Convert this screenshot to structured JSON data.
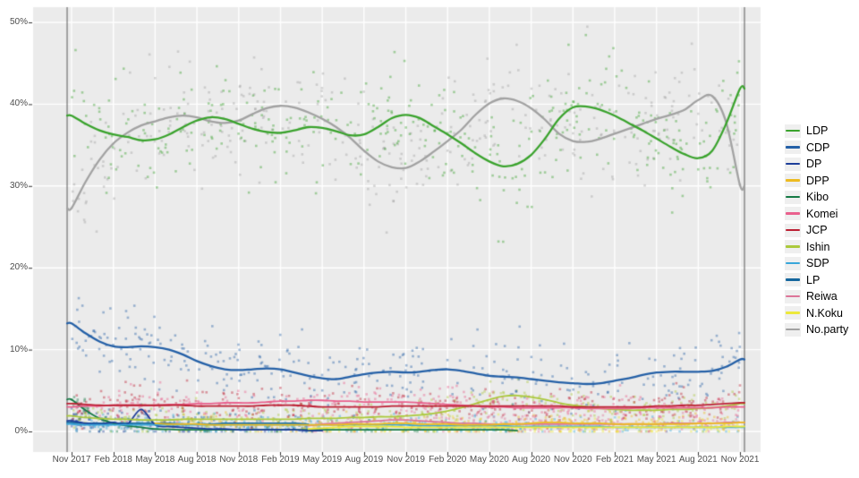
{
  "meta": {
    "description": "Smoothed opinion-poll chart of Japanese party support, Nov 2017 - Nov 2021"
  },
  "colors": {
    "background": "#ffffff",
    "panel": "#ebebeb",
    "grid": "#ffffff",
    "axis_text": "#4d4d4d",
    "tick_mark": "#333333",
    "event_line": "#646464",
    "legend_key_bg": "#efefef"
  },
  "axes": {
    "y_ticks": [
      {
        "label": "50%",
        "value": 50
      },
      {
        "label": "40%",
        "value": 40
      },
      {
        "label": "30%",
        "value": 30
      },
      {
        "label": "20%",
        "value": 20
      },
      {
        "label": "10%",
        "value": 10
      },
      {
        "label": "0%",
        "value": 0
      }
    ],
    "x_ticks": [
      "Nov 2017",
      "Feb 2018",
      "May 2018",
      "Aug 2018",
      "Nov 2018",
      "Feb 2019",
      "May 2019",
      "Aug 2019",
      "Nov 2019",
      "Feb 2020",
      "May 2020",
      "Aug 2020",
      "Nov 2020",
      "Feb 2021",
      "May 2021",
      "Aug 2021",
      "Nov 2021"
    ]
  },
  "chart_data": {
    "type": "scatter",
    "subtype": "poll scatter with loess smoothed lines per party",
    "title": "",
    "xlabel": "",
    "ylabel": "",
    "x_unit": "months since Nov 2017 (0..48)",
    "ylim": [
      -2.5,
      52
    ],
    "grid": "major gridlines only, white on gray panel",
    "legend_position": "right",
    "event_vlines_months": [
      -0.32,
      48.32
    ],
    "series": [
      {
        "name": "LDP",
        "color": "#3aa32d",
        "start_month": 0,
        "point_count": 380,
        "point_sd": 3.4,
        "monthly_values": [
          38.6,
          37.6,
          36.8,
          36.3,
          36.0,
          35.6,
          35.7,
          36.3,
          37.2,
          38.0,
          38.4,
          38.2,
          37.6,
          37.0,
          36.6,
          36.5,
          36.8,
          37.2,
          37.1,
          36.7,
          36.2,
          36.3,
          37.2,
          38.3,
          38.7,
          38.3,
          37.3,
          36.3,
          35.2,
          34.0,
          33.0,
          32.4,
          32.7,
          33.8,
          35.8,
          38.2,
          39.6,
          39.7,
          39.3,
          38.6,
          37.7,
          36.8,
          35.8,
          34.8,
          33.9,
          33.4,
          34.3,
          37.6,
          41.9
        ]
      },
      {
        "name": "CDP",
        "color": "#2460a7",
        "start_month": 0,
        "point_count": 340,
        "point_sd": 2.2,
        "monthly_values": [
          13.2,
          12.0,
          11.0,
          10.4,
          10.3,
          10.4,
          10.3,
          10.0,
          9.4,
          8.6,
          8.0,
          7.6,
          7.5,
          7.6,
          7.7,
          7.6,
          7.2,
          6.8,
          6.5,
          6.4,
          6.7,
          7.0,
          7.2,
          7.3,
          7.2,
          7.3,
          7.5,
          7.6,
          7.4,
          7.1,
          6.8,
          6.7,
          6.6,
          6.4,
          6.2,
          6.0,
          5.9,
          5.8,
          5.9,
          6.2,
          6.5,
          6.9,
          7.2,
          7.3,
          7.3,
          7.3,
          7.4,
          7.9,
          8.8
        ]
      },
      {
        "name": "DP",
        "color": "#1d3e99",
        "start_month": 0,
        "point_count": 80,
        "point_sd": 0.7,
        "point_bias_early": true,
        "monthly_values": [
          1.3,
          1.0,
          0.9,
          1.1,
          0.9,
          2.7,
          0.8,
          0.6,
          0.5,
          0.4,
          0.3,
          0.3,
          0.2,
          0.2,
          0.2,
          0.2,
          0.2,
          0.1,
          0.1
        ]
      },
      {
        "name": "DPP",
        "color": "#edbb21",
        "start_month": 6,
        "point_count": 250,
        "point_sd": 0.7,
        "monthly_values": [
          1.0,
          0.9,
          0.9,
          0.9,
          0.8,
          0.8,
          0.8,
          0.8,
          0.8,
          0.8,
          0.8,
          0.8,
          0.8,
          0.8,
          0.9,
          0.9,
          0.9,
          1.0,
          1.0,
          0.9,
          0.9,
          0.9,
          0.8,
          0.8,
          0.8,
          0.9,
          0.9,
          1.0,
          1.1,
          1.1,
          1.0,
          1.0,
          1.0,
          0.9,
          0.9,
          0.9,
          0.9,
          0.9,
          0.9,
          1.0,
          1.0,
          1.0,
          1.1
        ]
      },
      {
        "name": "Kibo",
        "color": "#157a45",
        "start_month": 0,
        "point_count": 80,
        "point_sd": 0.6,
        "point_bias_early": true,
        "monthly_values": [
          3.9,
          2.6,
          1.6,
          1.0,
          0.7,
          0.5,
          0.3,
          0.25,
          0.2,
          0.2,
          0.2,
          0.2,
          0.2,
          0.2,
          0.2,
          0.2,
          0.2,
          0.2,
          0.2,
          0.2,
          0.2,
          0.2,
          0.2,
          0.2,
          0.2,
          0.2,
          0.2,
          0.2,
          0.2,
          0.2,
          0.2,
          0.2,
          0.1
        ]
      },
      {
        "name": "Komei",
        "color": "#e9608d",
        "start_month": 0,
        "point_count": 300,
        "point_sd": 1.0,
        "monthly_values": [
          3.0,
          3.1,
          3.1,
          3.2,
          3.2,
          3.2,
          3.2,
          3.3,
          3.3,
          3.4,
          3.4,
          3.5,
          3.5,
          3.5,
          3.6,
          3.7,
          3.7,
          3.8,
          3.8,
          3.7,
          3.7,
          3.6,
          3.6,
          3.6,
          3.6,
          3.5,
          3.4,
          3.3,
          3.2,
          3.1,
          3.0,
          3.0,
          2.9,
          2.9,
          2.9,
          2.9,
          2.9,
          2.8,
          2.8,
          2.8,
          2.8,
          2.9,
          2.9,
          2.9,
          2.9,
          2.9,
          2.9,
          3.0,
          3.0
        ]
      },
      {
        "name": "JCP",
        "color": "#bc1f33",
        "start_month": 0,
        "point_count": 300,
        "point_sd": 1.1,
        "monthly_values": [
          3.4,
          3.3,
          3.2,
          3.2,
          3.2,
          3.2,
          3.2,
          3.2,
          3.2,
          3.1,
          3.1,
          3.1,
          3.1,
          3.1,
          3.2,
          3.2,
          3.2,
          3.1,
          3.0,
          3.0,
          3.0,
          3.0,
          3.0,
          3.1,
          3.1,
          3.1,
          3.1,
          3.1,
          3.1,
          3.1,
          3.1,
          3.1,
          3.1,
          3.1,
          3.1,
          3.1,
          3.0,
          3.0,
          3.0,
          3.0,
          3.0,
          3.0,
          3.1,
          3.1,
          3.2,
          3.2,
          3.3,
          3.4,
          3.5
        ]
      },
      {
        "name": "Ishin",
        "color": "#abc93c",
        "start_month": 0,
        "point_count": 280,
        "point_sd": 1.0,
        "monthly_values": [
          1.9,
          1.7,
          1.6,
          1.5,
          1.5,
          1.4,
          1.4,
          1.4,
          1.5,
          1.5,
          1.5,
          1.5,
          1.5,
          1.5,
          1.5,
          1.5,
          1.5,
          1.6,
          1.6,
          1.6,
          1.7,
          1.7,
          1.8,
          1.8,
          1.9,
          2.0,
          2.2,
          2.5,
          2.9,
          3.4,
          3.9,
          4.3,
          4.4,
          4.2,
          3.9,
          3.5,
          3.2,
          3.0,
          2.8,
          2.7,
          2.6,
          2.6,
          2.6,
          2.7,
          2.7,
          2.8,
          2.9,
          3.1,
          3.4
        ]
      },
      {
        "name": "SDP",
        "color": "#38a6da",
        "start_month": 0,
        "point_count": 260,
        "point_sd": 0.6,
        "monthly_values": [
          0.9,
          0.8,
          0.8,
          0.8,
          0.8,
          0.8,
          0.8,
          0.8,
          0.8,
          0.8,
          0.8,
          0.8,
          0.8,
          0.8,
          0.8,
          0.8,
          0.8,
          0.8,
          0.8,
          0.8,
          0.8,
          0.8,
          0.8,
          0.8,
          0.8,
          0.7,
          0.7,
          0.7,
          0.7,
          0.7,
          0.7,
          0.7,
          0.6,
          0.6,
          0.6,
          0.6,
          0.6,
          0.6,
          0.6,
          0.5,
          0.5,
          0.5,
          0.5,
          0.5,
          0.5,
          0.5,
          0.5,
          0.5,
          0.5
        ]
      },
      {
        "name": "LP",
        "color": "#15679e",
        "start_month": 0,
        "point_count": 120,
        "point_sd": 0.7,
        "monthly_values": [
          1.1,
          1.0,
          1.0,
          1.0,
          1.0,
          1.0,
          1.0,
          1.0,
          0.9,
          0.9,
          0.9,
          1.0,
          1.0,
          1.0,
          1.0,
          1.0,
          1.0,
          0.9
        ]
      },
      {
        "name": "Reiwa",
        "color": "#dd7599",
        "start_month": 17,
        "point_count": 190,
        "point_sd": 0.7,
        "monthly_values": [
          0.7,
          0.9,
          1.0,
          1.1,
          1.2,
          1.3,
          1.4,
          1.4,
          1.3,
          1.2,
          1.1,
          1.0,
          1.0,
          0.9,
          0.9,
          0.9,
          0.9,
          0.9,
          0.9,
          0.9,
          0.9,
          0.9,
          0.9,
          0.9,
          0.9,
          0.9,
          1.0,
          1.0,
          1.0,
          1.0,
          1.1,
          1.1
        ]
      },
      {
        "name": "N.Koku",
        "color": "#ece83b",
        "start_month": 17,
        "point_count": 190,
        "point_sd": 0.6,
        "monthly_values": [
          0.3,
          0.4,
          0.5,
          0.6,
          0.6,
          0.6,
          0.6,
          0.5,
          0.5,
          0.5,
          0.5,
          0.5,
          0.5,
          0.5,
          0.5,
          0.5,
          0.5,
          0.5,
          0.5,
          0.5,
          0.5,
          0.5,
          0.5,
          0.5,
          0.5,
          0.5,
          0.5,
          0.5,
          0.5,
          0.5,
          0.6,
          0.6
        ]
      },
      {
        "name": "No.party",
        "color": "#a2a2a2",
        "start_month": 0,
        "point_count": 380,
        "point_sd": 3.6,
        "monthly_values": [
          27.3,
          30.5,
          33.2,
          35.2,
          36.5,
          37.4,
          37.9,
          38.4,
          38.6,
          38.4,
          37.9,
          37.7,
          38.0,
          38.8,
          39.5,
          39.8,
          39.6,
          39.0,
          38.2,
          37.2,
          35.9,
          34.3,
          33.0,
          32.3,
          32.2,
          33.0,
          34.2,
          35.5,
          36.9,
          38.7,
          40.1,
          40.7,
          40.4,
          39.5,
          38.1,
          36.4,
          35.5,
          35.4,
          35.8,
          36.4,
          37.0,
          37.6,
          38.2,
          38.7,
          39.3,
          40.5,
          41.0,
          37.8,
          30.1
        ]
      }
    ]
  }
}
